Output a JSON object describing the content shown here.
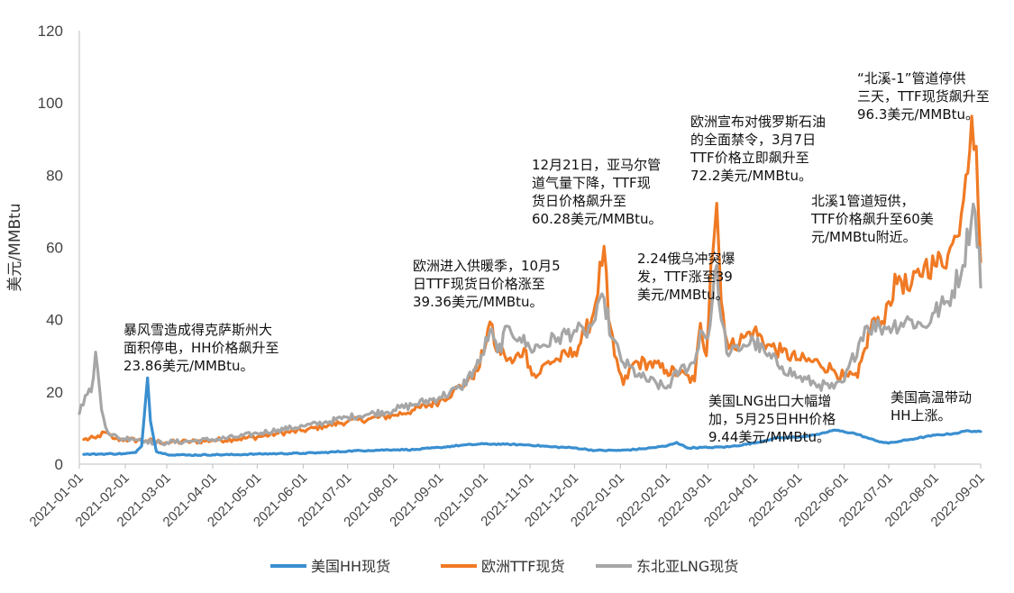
{
  "chart_data": {
    "type": "line",
    "title": "",
    "xlabel": "",
    "ylabel": "美元/MMBtu",
    "ylim": [
      0,
      120
    ],
    "yticks": [
      "0",
      "20",
      "40",
      "60",
      "80",
      "100",
      "120"
    ],
    "xticks": [
      "2021-01-01",
      "2021-02-01",
      "2021-03-01",
      "2021-04-01",
      "2021-05-01",
      "2021-06-01",
      "2021-07-01",
      "2021-08-01",
      "2021-09-01",
      "2021-10-01",
      "2021-11-01",
      "2021-12-01",
      "2022-01-01",
      "2022-02-01",
      "2022-03-01",
      "2022-04-01",
      "2022-05-01",
      "2022-06-01",
      "2022-07-01",
      "2022-08-01",
      "2022-09-01"
    ],
    "grid": false,
    "legend_position": "bottom",
    "series": [
      {
        "name": "美国HH现货",
        "color": "#3a8fd0",
        "points": [
          [
            "2021-01-04",
            2.7
          ],
          [
            "2021-01-15",
            2.8
          ],
          [
            "2021-02-01",
            2.9
          ],
          [
            "2021-02-08",
            3.2
          ],
          [
            "2021-02-12",
            5
          ],
          [
            "2021-02-16",
            23.86
          ],
          [
            "2021-02-18",
            12
          ],
          [
            "2021-02-22",
            3.5
          ],
          [
            "2021-03-01",
            2.7
          ],
          [
            "2021-03-15",
            2.5
          ],
          [
            "2021-04-01",
            2.6
          ],
          [
            "2021-04-15",
            2.6
          ],
          [
            "2021-05-01",
            2.8
          ],
          [
            "2021-05-15",
            2.9
          ],
          [
            "2021-06-01",
            3.0
          ],
          [
            "2021-06-15",
            3.2
          ],
          [
            "2021-07-01",
            3.6
          ],
          [
            "2021-07-15",
            3.8
          ],
          [
            "2021-08-01",
            4.0
          ],
          [
            "2021-08-15",
            4.0
          ],
          [
            "2021-09-01",
            4.6
          ],
          [
            "2021-09-15",
            5.2
          ],
          [
            "2021-10-01",
            5.6
          ],
          [
            "2021-10-15",
            5.5
          ],
          [
            "2021-11-01",
            5.3
          ],
          [
            "2021-11-15",
            4.8
          ],
          [
            "2021-12-01",
            4.5
          ],
          [
            "2021-12-15",
            3.8
          ],
          [
            "2022-01-01",
            3.8
          ],
          [
            "2022-01-15",
            4.2
          ],
          [
            "2022-02-01",
            5.0
          ],
          [
            "2022-02-08",
            6.0
          ],
          [
            "2022-02-15",
            4.5
          ],
          [
            "2022-03-01",
            4.6
          ],
          [
            "2022-03-15",
            4.8
          ],
          [
            "2022-04-01",
            5.8
          ],
          [
            "2022-04-15",
            7.2
          ],
          [
            "2022-05-01",
            7.5
          ],
          [
            "2022-05-15",
            8.2
          ],
          [
            "2022-05-25",
            9.44
          ],
          [
            "2022-06-08",
            8.5
          ],
          [
            "2022-06-15",
            7.5
          ],
          [
            "2022-06-22",
            6.5
          ],
          [
            "2022-07-01",
            5.8
          ],
          [
            "2022-07-15",
            6.8
          ],
          [
            "2022-08-01",
            8.0
          ],
          [
            "2022-08-15",
            8.5
          ],
          [
            "2022-08-22",
            9.2
          ],
          [
            "2022-09-01",
            9.0
          ]
        ]
      },
      {
        "name": "欧洲TTF现货",
        "color": "#f07a24",
        "points": [
          [
            "2021-01-04",
            6.8
          ],
          [
            "2021-01-12",
            7.2
          ],
          [
            "2021-01-18",
            8.8
          ],
          [
            "2021-01-25",
            7.0
          ],
          [
            "2021-02-01",
            6.8
          ],
          [
            "2021-02-15",
            6.5
          ],
          [
            "2021-03-01",
            6.0
          ],
          [
            "2021-03-15",
            6.2
          ],
          [
            "2021-04-01",
            6.6
          ],
          [
            "2021-04-15",
            6.9
          ],
          [
            "2021-05-01",
            7.5
          ],
          [
            "2021-05-15",
            8.5
          ],
          [
            "2021-06-01",
            9.3
          ],
          [
            "2021-06-15",
            10.5
          ],
          [
            "2021-07-01",
            11.8
          ],
          [
            "2021-07-15",
            12.5
          ],
          [
            "2021-08-01",
            13.5
          ],
          [
            "2021-08-15",
            15.0
          ],
          [
            "2021-09-01",
            17.5
          ],
          [
            "2021-09-10",
            20.0
          ],
          [
            "2021-09-20",
            23.0
          ],
          [
            "2021-09-28",
            27.0
          ],
          [
            "2021-10-05",
            39.36
          ],
          [
            "2021-10-08",
            33.0
          ],
          [
            "2021-10-15",
            30.0
          ],
          [
            "2021-10-20",
            28.0
          ],
          [
            "2021-10-28",
            32.0
          ],
          [
            "2021-11-01",
            27.0
          ],
          [
            "2021-11-05",
            24.0
          ],
          [
            "2021-11-12",
            28.0
          ],
          [
            "2021-11-20",
            29.0
          ],
          [
            "2021-12-01",
            31.0
          ],
          [
            "2021-12-08",
            36.0
          ],
          [
            "2021-12-14",
            42.0
          ],
          [
            "2021-12-21",
            60.28
          ],
          [
            "2021-12-24",
            40.0
          ],
          [
            "2021-12-28",
            30.0
          ],
          [
            "2022-01-03",
            22.0
          ],
          [
            "2022-01-10",
            28.0
          ],
          [
            "2022-01-20",
            28.0
          ],
          [
            "2022-02-01",
            26.0
          ],
          [
            "2022-02-10",
            25.0
          ],
          [
            "2022-02-20",
            23.0
          ],
          [
            "2022-02-24",
            39.0
          ],
          [
            "2022-02-28",
            30.0
          ],
          [
            "2022-03-03",
            55.0
          ],
          [
            "2022-03-07",
            72.2
          ],
          [
            "2022-03-10",
            45.0
          ],
          [
            "2022-03-15",
            32.0
          ],
          [
            "2022-03-25",
            35.0
          ],
          [
            "2022-04-01",
            37.0
          ],
          [
            "2022-04-10",
            33.0
          ],
          [
            "2022-04-20",
            31.0
          ],
          [
            "2022-05-01",
            29.0
          ],
          [
            "2022-05-15",
            28.0
          ],
          [
            "2022-05-25",
            26.0
          ],
          [
            "2022-06-01",
            24.0
          ],
          [
            "2022-06-10",
            24.0
          ],
          [
            "2022-06-15",
            32.0
          ],
          [
            "2022-06-20",
            40.0
          ],
          [
            "2022-06-25",
            38.0
          ],
          [
            "2022-07-01",
            45.0
          ],
          [
            "2022-07-08",
            52.0
          ],
          [
            "2022-07-15",
            48.0
          ],
          [
            "2022-07-25",
            55.0
          ],
          [
            "2022-08-01",
            55.0
          ],
          [
            "2022-08-10",
            58.0
          ],
          [
            "2022-08-16",
            63.0
          ],
          [
            "2022-08-22",
            80.0
          ],
          [
            "2022-08-26",
            96.3
          ],
          [
            "2022-08-29",
            88.0
          ],
          [
            "2022-09-01",
            56.0
          ]
        ]
      },
      {
        "name": "东北亚LNG现货",
        "color": "#a6a6a6",
        "points": [
          [
            "2021-01-01",
            14.0
          ],
          [
            "2021-01-05",
            19.0
          ],
          [
            "2021-01-09",
            20.0
          ],
          [
            "2021-01-12",
            31.0
          ],
          [
            "2021-01-16",
            15.0
          ],
          [
            "2021-01-20",
            9.0
          ],
          [
            "2021-01-28",
            7.0
          ],
          [
            "2021-02-05",
            7.2
          ],
          [
            "2021-02-15",
            6.5
          ],
          [
            "2021-02-22",
            5.8
          ],
          [
            "2021-03-01",
            6.0
          ],
          [
            "2021-03-15",
            6.3
          ],
          [
            "2021-04-01",
            6.8
          ],
          [
            "2021-04-15",
            7.4
          ],
          [
            "2021-05-01",
            8.5
          ],
          [
            "2021-05-15",
            9.5
          ],
          [
            "2021-06-01",
            10.5
          ],
          [
            "2021-06-15",
            11.5
          ],
          [
            "2021-07-01",
            13.0
          ],
          [
            "2021-07-15",
            13.8
          ],
          [
            "2021-08-01",
            15.0
          ],
          [
            "2021-08-15",
            16.5
          ],
          [
            "2021-09-01",
            18.5
          ],
          [
            "2021-09-15",
            21.0
          ],
          [
            "2021-09-28",
            28.0
          ],
          [
            "2021-10-05",
            37.0
          ],
          [
            "2021-10-10",
            31.0
          ],
          [
            "2021-10-18",
            38.0
          ],
          [
            "2021-10-25",
            35.0
          ],
          [
            "2021-11-01",
            32.0
          ],
          [
            "2021-11-10",
            33.0
          ],
          [
            "2021-11-20",
            35.0
          ],
          [
            "2021-12-01",
            37.0
          ],
          [
            "2021-12-08",
            36.0
          ],
          [
            "2021-12-15",
            40.0
          ],
          [
            "2021-12-21",
            46.0
          ],
          [
            "2021-12-26",
            35.0
          ],
          [
            "2022-01-03",
            28.0
          ],
          [
            "2022-01-15",
            24.0
          ],
          [
            "2022-02-01",
            21.0
          ],
          [
            "2022-02-10",
            26.0
          ],
          [
            "2022-02-20",
            28.0
          ],
          [
            "2022-02-24",
            37.0
          ],
          [
            "2022-03-01",
            35.0
          ],
          [
            "2022-03-07",
            55.0
          ],
          [
            "2022-03-10",
            40.0
          ],
          [
            "2022-03-15",
            30.0
          ],
          [
            "2022-03-25",
            33.0
          ],
          [
            "2022-04-01",
            34.0
          ],
          [
            "2022-04-10",
            30.0
          ],
          [
            "2022-04-20",
            27.0
          ],
          [
            "2022-05-01",
            24.0
          ],
          [
            "2022-05-15",
            22.0
          ],
          [
            "2022-05-25",
            21.0
          ],
          [
            "2022-06-01",
            23.0
          ],
          [
            "2022-06-15",
            38.0
          ],
          [
            "2022-06-25",
            38.0
          ],
          [
            "2022-07-01",
            38.0
          ],
          [
            "2022-07-15",
            40.0
          ],
          [
            "2022-07-25",
            38.0
          ],
          [
            "2022-08-01",
            42.0
          ],
          [
            "2022-08-10",
            45.0
          ],
          [
            "2022-08-20",
            55.0
          ],
          [
            "2022-08-27",
            72.0
          ],
          [
            "2022-08-31",
            60.0
          ],
          [
            "2022-09-01",
            49.0
          ]
        ]
      }
    ],
    "annotations": [
      {
        "lines": [
          "暴风雪造成得克萨斯州大",
          "面积停电，HH价格飙升至",
          "23.86美元/MMBtu。"
        ]
      },
      {
        "lines": [
          "欧洲进入供暖季，10月5",
          "日TTF现货日价格涨至",
          "39.36美元/MMBtu。"
        ]
      },
      {
        "lines": [
          "12月21日，亚马尔管",
          "道气量下降，TTF现",
          "货日价格飙升至",
          "60.28美元/MMBtu。"
        ]
      },
      {
        "lines": [
          "2.24俄乌冲突爆",
          "发，TTF涨至39",
          "美元/MMBtu。"
        ]
      },
      {
        "lines": [
          "欧洲宣布对俄罗斯石油",
          "的全面禁令，3月7日",
          "TTF价格立即飙升至",
          "72.2美元/MMBtu。"
        ]
      },
      {
        "lines": [
          "美国LNG出口大幅增",
          "加，5月25日HH价格",
          "9.44美元/MMBtu。"
        ]
      },
      {
        "lines": [
          "“北溪-1”管道停供",
          "三天，TTF现货飙升至",
          "96.3美元/MMBtu。"
        ]
      },
      {
        "lines": [
          "北溪1管道短供，",
          "TTF价格飙升至60美",
          "元/MMBtu附近。"
        ]
      },
      {
        "lines": [
          "美国高温带动",
          "HH上涨。"
        ]
      }
    ]
  }
}
